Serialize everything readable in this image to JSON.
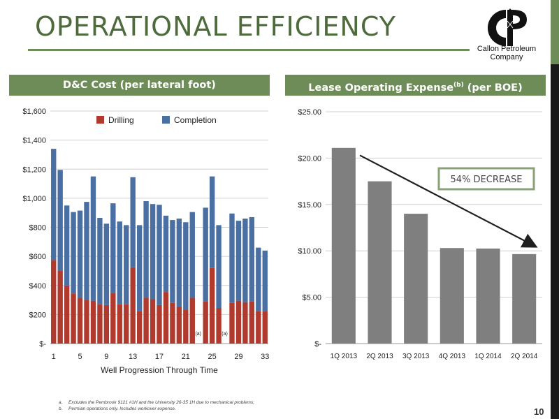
{
  "page": {
    "title": "OPERATIONAL EFFICIENCY",
    "logo_text": [
      "Callon Petroleum",
      "Company"
    ],
    "page_number": "10",
    "footnotes": [
      {
        "label": "a.",
        "text": "Excludes the Pembrook 9121 #1H and the University 26-35 1H due to mechanical problems;"
      },
      {
        "label": "b.",
        "text": "Permian operations only. Includes workover expense."
      }
    ],
    "colors": {
      "accent_green": "#6e8c58",
      "drilling": "#b03a2e",
      "completion": "#4a6fa3",
      "loe_bar": "#7f7f7f"
    }
  },
  "chart_data": [
    {
      "type": "bar",
      "stacked": true,
      "header": "D&C Cost (per lateral foot)",
      "xlabel": "Well Progression Through Time",
      "ylabel": "",
      "ylim": [
        0,
        1600
      ],
      "y_ticks": [
        0,
        200,
        400,
        600,
        800,
        1000,
        1200,
        1400,
        1600
      ],
      "y_tick_labels": [
        "$-",
        "$200",
        "$400",
        "$600",
        "$800",
        "$1,000",
        "$1,200",
        "$1,400",
        "$1,600"
      ],
      "categories": [
        1,
        2,
        3,
        4,
        5,
        6,
        7,
        8,
        9,
        10,
        11,
        12,
        13,
        14,
        15,
        16,
        17,
        18,
        19,
        20,
        21,
        22,
        23,
        24,
        25,
        26,
        27,
        28,
        29,
        30,
        31,
        32,
        33
      ],
      "x_tick_labels": [
        "1",
        "5",
        "9",
        "13",
        "17",
        "21",
        "25",
        "29",
        "33"
      ],
      "x_tick_positions": [
        1,
        5,
        9,
        13,
        17,
        21,
        25,
        29,
        33
      ],
      "legend_position": "top-center",
      "series": [
        {
          "name": "Drilling",
          "values": [
            575,
            500,
            400,
            345,
            315,
            300,
            295,
            270,
            265,
            350,
            270,
            270,
            525,
            225,
            315,
            305,
            265,
            355,
            280,
            255,
            235,
            315,
            0,
            290,
            520,
            245,
            0,
            280,
            295,
            285,
            290,
            225,
            225
          ]
        },
        {
          "name": "Completion",
          "values": [
            765,
            695,
            550,
            560,
            600,
            675,
            855,
            595,
            560,
            615,
            570,
            545,
            620,
            590,
            665,
            655,
            690,
            525,
            570,
            605,
            600,
            590,
            0,
            645,
            630,
            570,
            0,
            615,
            550,
            575,
            580,
            435,
            415
          ]
        }
      ],
      "annotations": [
        {
          "label": "(a)",
          "x": 23
        },
        {
          "label": "(a)",
          "x": 27
        }
      ]
    },
    {
      "type": "bar",
      "header_main": "Lease Operating Expense",
      "header_sup": "(b)",
      "header_tail": " (per BOE)",
      "categories": [
        "1Q 2013",
        "2Q 2013",
        "3Q 2013",
        "4Q 2013",
        "1Q 2014",
        "2Q 2014"
      ],
      "values": [
        21.1,
        17.5,
        14.0,
        10.3,
        10.25,
        9.65
      ],
      "ylim": [
        0,
        25
      ],
      "y_ticks": [
        0,
        5,
        10,
        15,
        20,
        25
      ],
      "y_tick_labels": [
        "$-",
        "$5.00",
        "$10.00",
        "$15.00",
        "$20.00",
        "$25.00"
      ],
      "callout": "54% DECREASE",
      "trend_arrow": {
        "from": {
          "x": 0.95,
          "y": 20.3
        },
        "to": {
          "x": 5.8,
          "y": 10.5
        }
      }
    }
  ]
}
